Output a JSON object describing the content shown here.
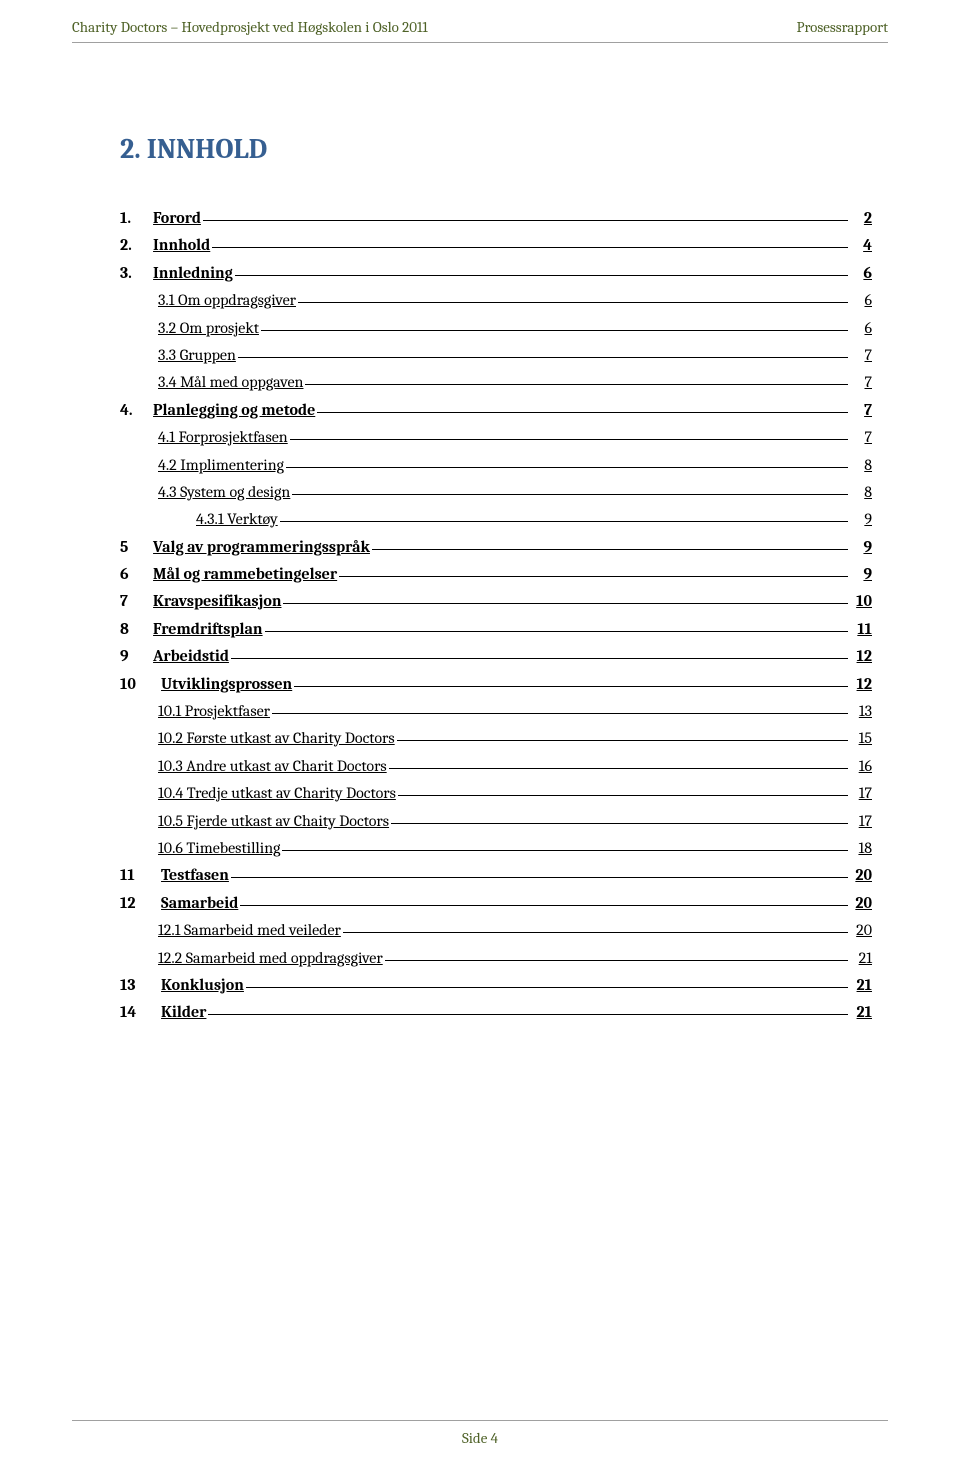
{
  "header": {
    "left": "Charity Doctors – Hovedprosjekt ved Høgskolen i Oslo 2011",
    "right": "Prosessrapport"
  },
  "title": "2. INNHOLD",
  "toc": [
    {
      "level": 0,
      "num": "1.",
      "label": "Forord",
      "page": "2",
      "bold": true
    },
    {
      "level": 0,
      "num": "2.",
      "label": "Innhold",
      "page": "4",
      "bold": true
    },
    {
      "level": 0,
      "num": "3.",
      "label": "Innledning",
      "page": "6",
      "bold": true
    },
    {
      "level": 1,
      "num": "",
      "label": "3.1 Om oppdragsgiver",
      "page": "6",
      "bold": false
    },
    {
      "level": 1,
      "num": "",
      "label": "3.2 Om prosjekt",
      "page": "6",
      "bold": false
    },
    {
      "level": 1,
      "num": "",
      "label": "3.3 Gruppen",
      "page": "7",
      "bold": false
    },
    {
      "level": 1,
      "num": "",
      "label": "3.4 Mål med oppgaven",
      "page": "7",
      "bold": false
    },
    {
      "level": 0,
      "num": "4.",
      "label": "Planlegging og metode",
      "page": "7",
      "bold": true
    },
    {
      "level": 1,
      "num": "",
      "label": "4.1 Forprosjektfasen",
      "page": "7",
      "bold": false
    },
    {
      "level": 1,
      "num": "",
      "label": "4.2 Implimentering",
      "page": "8",
      "bold": false
    },
    {
      "level": 1,
      "num": "",
      "label": "4.3 System og design",
      "page": "8",
      "bold": false
    },
    {
      "level": 2,
      "num": "",
      "label": "4.3.1   Verktøy",
      "page": "9",
      "bold": false
    },
    {
      "level": 0,
      "num": "5",
      "label": "Valg av programmeringsspråk",
      "page": "9",
      "bold": true
    },
    {
      "level": 0,
      "num": "6",
      "label": "Mål og rammebetingelser",
      "page": "9",
      "bold": true
    },
    {
      "level": 0,
      "num": "7",
      "label": "Kravspesifikasjon",
      "page": "10",
      "bold": true
    },
    {
      "level": 0,
      "num": "8",
      "label": "Fremdriftsplan",
      "page": "11",
      "bold": true
    },
    {
      "level": 0,
      "num": "9",
      "label": "Arbeidstid",
      "page": "12",
      "bold": true
    },
    {
      "level": 0,
      "num": "10",
      "label": "Utviklingsprossen",
      "page": "12",
      "bold": true
    },
    {
      "level": 1,
      "num": "",
      "label": "10.1   Prosjektfaser",
      "page": "13",
      "bold": false
    },
    {
      "level": 1,
      "num": "",
      "label": "10.2  Første utkast av Charity  Doctors",
      "page": "15",
      "bold": false
    },
    {
      "level": 1,
      "num": "",
      "label": "10.3  Andre utkast av Charit Doctors",
      "page": "16",
      "bold": false
    },
    {
      "level": 1,
      "num": "",
      "label": "10.4  Tredje utkast av Charity Doctors",
      "page": "17",
      "bold": false
    },
    {
      "level": 1,
      "num": "",
      "label": "10.5  Fjerde utkast av Chaity Doctors",
      "page": "17",
      "bold": false
    },
    {
      "level": 1,
      "num": "",
      "label": "10.6  Timebestilling",
      "page": "18",
      "bold": false
    },
    {
      "level": 0,
      "num": "11",
      "label": "Testfasen",
      "page": "20",
      "bold": true
    },
    {
      "level": 0,
      "num": "12",
      "label": "Samarbeid",
      "page": "20",
      "bold": true
    },
    {
      "level": 1,
      "num": "",
      "label": "12.1 Samarbeid med veileder",
      "page": "20",
      "bold": false
    },
    {
      "level": 1,
      "num": "",
      "label": "12.2 Samarbeid med oppdragsgiver",
      "page": "21",
      "bold": false
    },
    {
      "level": 0,
      "num": "13",
      "label": "Konklusjon",
      "page": "21",
      "bold": true
    },
    {
      "level": 0,
      "num": "14",
      "label": "Kilder",
      "page": "21",
      "bold": true
    }
  ],
  "footer": {
    "text": "Side 4"
  },
  "colors": {
    "header_text": "#4f6228",
    "title_text": "#365f91",
    "body_text": "#000000",
    "rule": "#a0a0a0",
    "background": "#ffffff"
  }
}
